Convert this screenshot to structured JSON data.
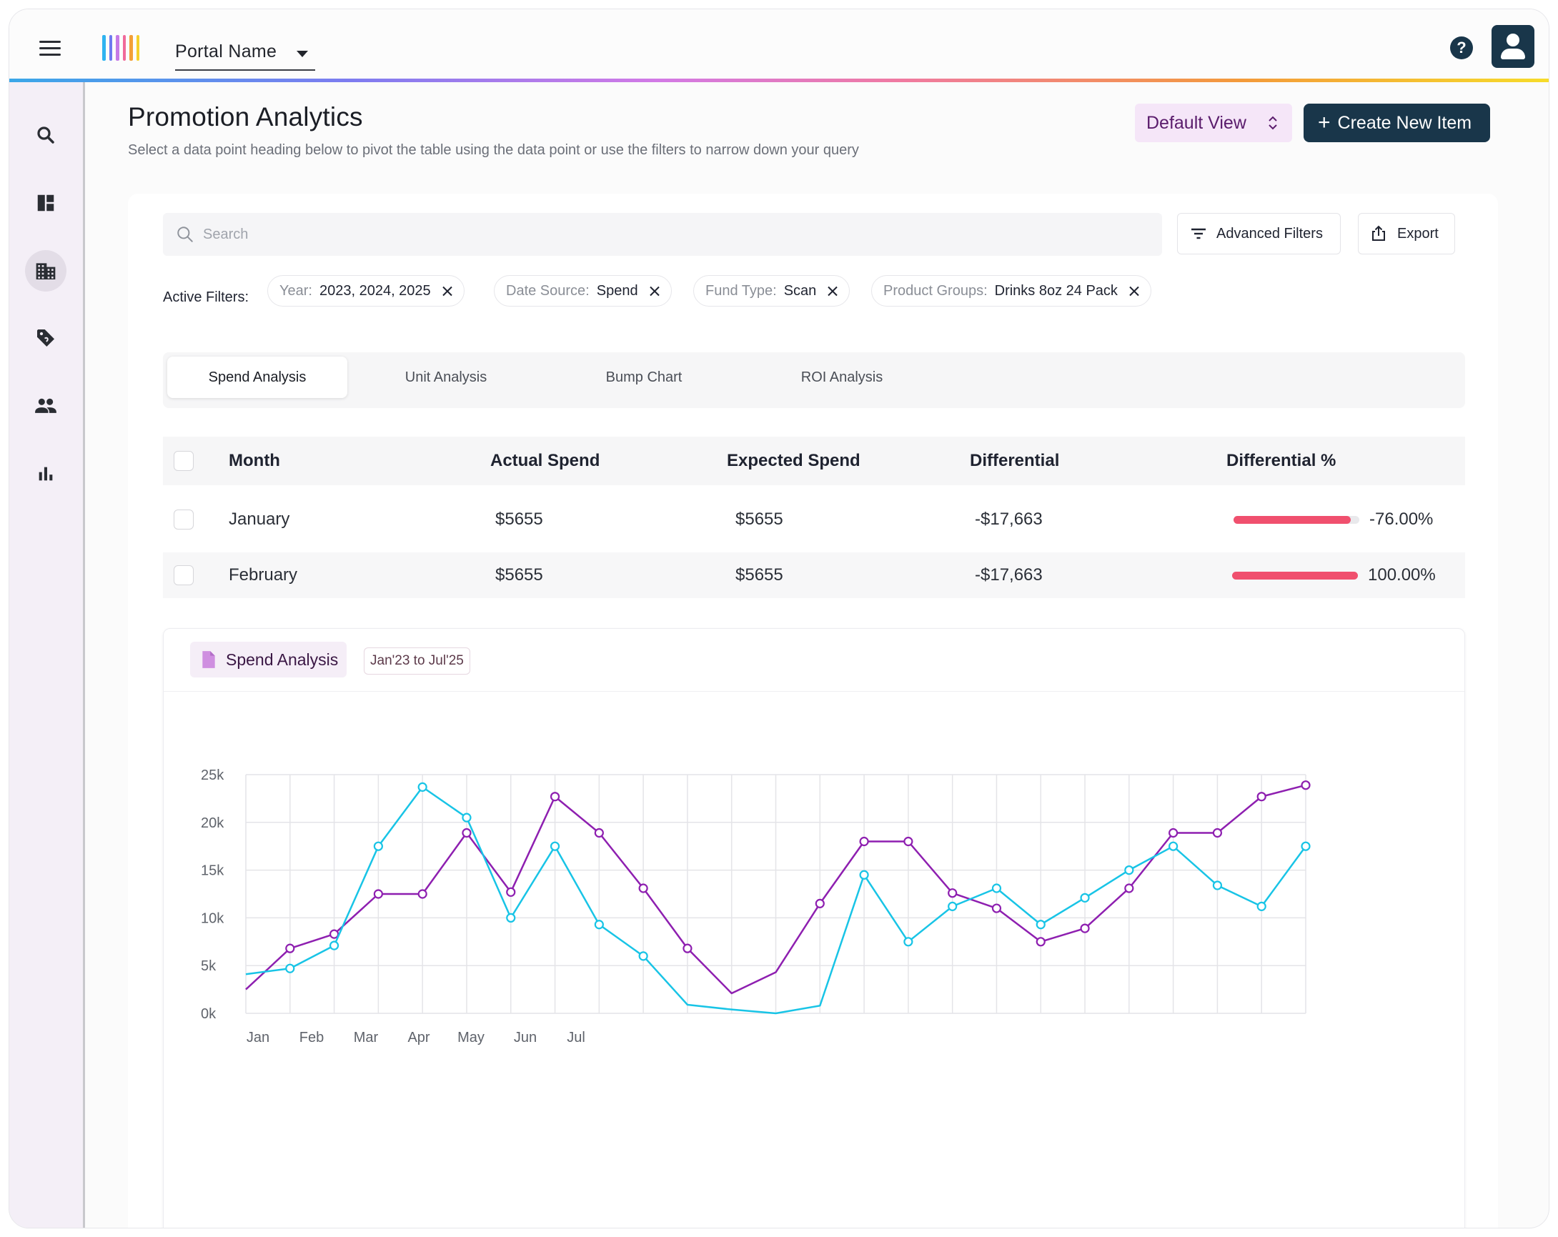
{
  "header": {
    "portal_name": "Portal Name",
    "logo_colors": [
      "#2fb3f0",
      "#6e7af0",
      "#c67ae6",
      "#f06a9a",
      "#f3a037",
      "#f5d02a"
    ]
  },
  "sidebar": {
    "items": [
      {
        "icon": "search-icon",
        "active": false
      },
      {
        "icon": "dashboard-icon",
        "active": false
      },
      {
        "icon": "building-icon",
        "active": true
      },
      {
        "icon": "tag-icon",
        "active": false
      },
      {
        "icon": "people-icon",
        "active": false
      },
      {
        "icon": "bar-chart-icon",
        "active": false
      }
    ]
  },
  "page": {
    "title": "Promotion Analytics",
    "subtitle": "Select a data point heading below to pivot the table using the data point or use the filters to narrow down your query",
    "default_view_label": "Default View",
    "create_button_label": "Create New Item"
  },
  "toolbar": {
    "search_placeholder": "Search",
    "advanced_filters_label": "Advanced Filters",
    "export_label": "Export"
  },
  "filters": {
    "label": "Active Filters:",
    "chips": [
      {
        "key": "Year:",
        "value": "2023, 2024, 2025"
      },
      {
        "key": "Date Source:",
        "value": "Spend"
      },
      {
        "key": "Fund Type:",
        "value": "Scan"
      },
      {
        "key": "Product Groups:",
        "value": "Drinks 8oz 24 Pack"
      }
    ]
  },
  "tabs": [
    {
      "label": "Spend Analysis",
      "active": true
    },
    {
      "label": "Unit Analysis",
      "active": false
    },
    {
      "label": "Bump Chart",
      "active": false
    },
    {
      "label": "ROI Analysis",
      "active": false
    }
  ],
  "table": {
    "columns": [
      "Month",
      "Actual Spend",
      "Expected Spend",
      "Differential",
      "Differential %"
    ],
    "rows": [
      {
        "month": "January",
        "actual": "$5655",
        "expected": "$5655",
        "differential": "-$17,663",
        "differential_pct": "-76.00%",
        "bar_fraction": 0.93
      },
      {
        "month": "February",
        "actual": "$5655",
        "expected": "$5655",
        "differential": "-$17,663",
        "differential_pct": "100.00%",
        "bar_fraction": 1.0
      }
    ]
  },
  "chart_card": {
    "title": "Spend Analysis",
    "range": "Jan'23 to Jul'25"
  },
  "chart_data": {
    "type": "line",
    "x_tick_labels": [
      "Jan",
      "Feb",
      "Mar",
      "Apr",
      "May",
      "Jun",
      "Jul"
    ],
    "ylim": [
      0,
      25000
    ],
    "y_ticks": [
      "0k",
      "5k",
      "10k",
      "15k",
      "20k",
      "25k"
    ],
    "grid": true,
    "series": [
      {
        "color": "#8e1fb0",
        "values": [
          2500,
          6800,
          8300,
          12500,
          12500,
          18900,
          12700,
          22700,
          18900,
          13100,
          6800,
          2100,
          4300,
          11500,
          18000,
          18000,
          12600,
          11000,
          7500,
          8900,
          13100,
          18900,
          18900,
          22700,
          23900
        ],
        "markers_hidden": [
          0,
          11,
          12
        ]
      },
      {
        "color": "#18c4e6",
        "values": [
          4100,
          4700,
          7100,
          17500,
          23700,
          20500,
          10000,
          17500,
          9300,
          6000,
          900,
          400,
          0,
          800,
          14500,
          7500,
          11200,
          13100,
          9300,
          12100,
          15000,
          17500,
          13400,
          11200,
          17500
        ],
        "markers_hidden": [
          0,
          10,
          11,
          12,
          13
        ]
      }
    ]
  }
}
